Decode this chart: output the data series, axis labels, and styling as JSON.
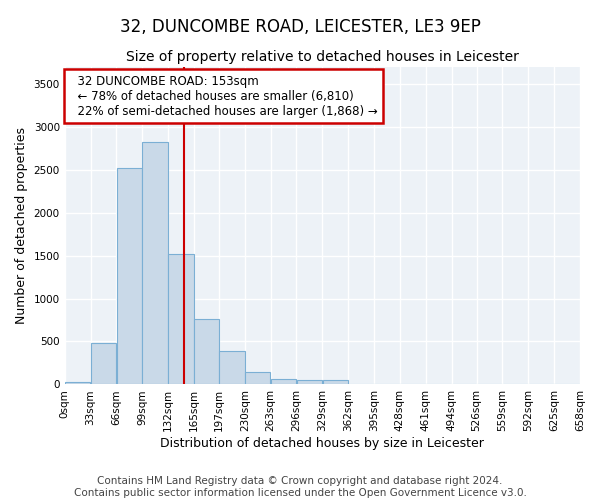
{
  "title": "32, DUNCOMBE ROAD, LEICESTER, LE3 9EP",
  "subtitle": "Size of property relative to detached houses in Leicester",
  "xlabel": "Distribution of detached houses by size in Leicester",
  "ylabel": "Number of detached properties",
  "footer_line1": "Contains HM Land Registry data © Crown copyright and database right 2024.",
  "footer_line2": "Contains public sector information licensed under the Open Government Licence v3.0.",
  "bar_left_edges": [
    0,
    33,
    66,
    99,
    132,
    165,
    197,
    230,
    263,
    296,
    329,
    362,
    395,
    428,
    461,
    494,
    526,
    559,
    592,
    625
  ],
  "bar_heights": [
    30,
    480,
    2520,
    2820,
    1520,
    760,
    390,
    140,
    65,
    55,
    55,
    0,
    0,
    0,
    0,
    0,
    0,
    0,
    0,
    0
  ],
  "bar_widths": [
    33,
    33,
    33,
    33,
    33,
    32,
    33,
    33,
    33,
    33,
    33,
    33,
    33,
    33,
    33,
    32,
    33,
    33,
    33,
    33
  ],
  "bar_color": "#c9d9e8",
  "bar_edge_color": "#7bafd4",
  "xlim": [
    0,
    658
  ],
  "ylim": [
    0,
    3700
  ],
  "yticks": [
    0,
    500,
    1000,
    1500,
    2000,
    2500,
    3000,
    3500
  ],
  "xtick_labels": [
    "0sqm",
    "33sqm",
    "66sqm",
    "99sqm",
    "132sqm",
    "165sqm",
    "197sqm",
    "230sqm",
    "263sqm",
    "296sqm",
    "329sqm",
    "362sqm",
    "395sqm",
    "428sqm",
    "461sqm",
    "494sqm",
    "526sqm",
    "559sqm",
    "592sqm",
    "625sqm",
    "658sqm"
  ],
  "xtick_positions": [
    0,
    33,
    66,
    99,
    132,
    165,
    197,
    230,
    263,
    296,
    329,
    362,
    395,
    428,
    461,
    494,
    526,
    559,
    592,
    625,
    658
  ],
  "vline_x": 153,
  "vline_color": "#cc0000",
  "annotation_text": "  32 DUNCOMBE ROAD: 153sqm\n  ← 78% of detached houses are smaller (6,810)\n  22% of semi-detached houses are larger (1,868) →",
  "annotation_box_color": "#cc0000",
  "background_color": "#edf2f7",
  "grid_color": "#ffffff",
  "title_fontsize": 12,
  "subtitle_fontsize": 10,
  "axis_label_fontsize": 9,
  "tick_fontsize": 7.5,
  "annotation_fontsize": 8.5,
  "footer_fontsize": 7.5
}
